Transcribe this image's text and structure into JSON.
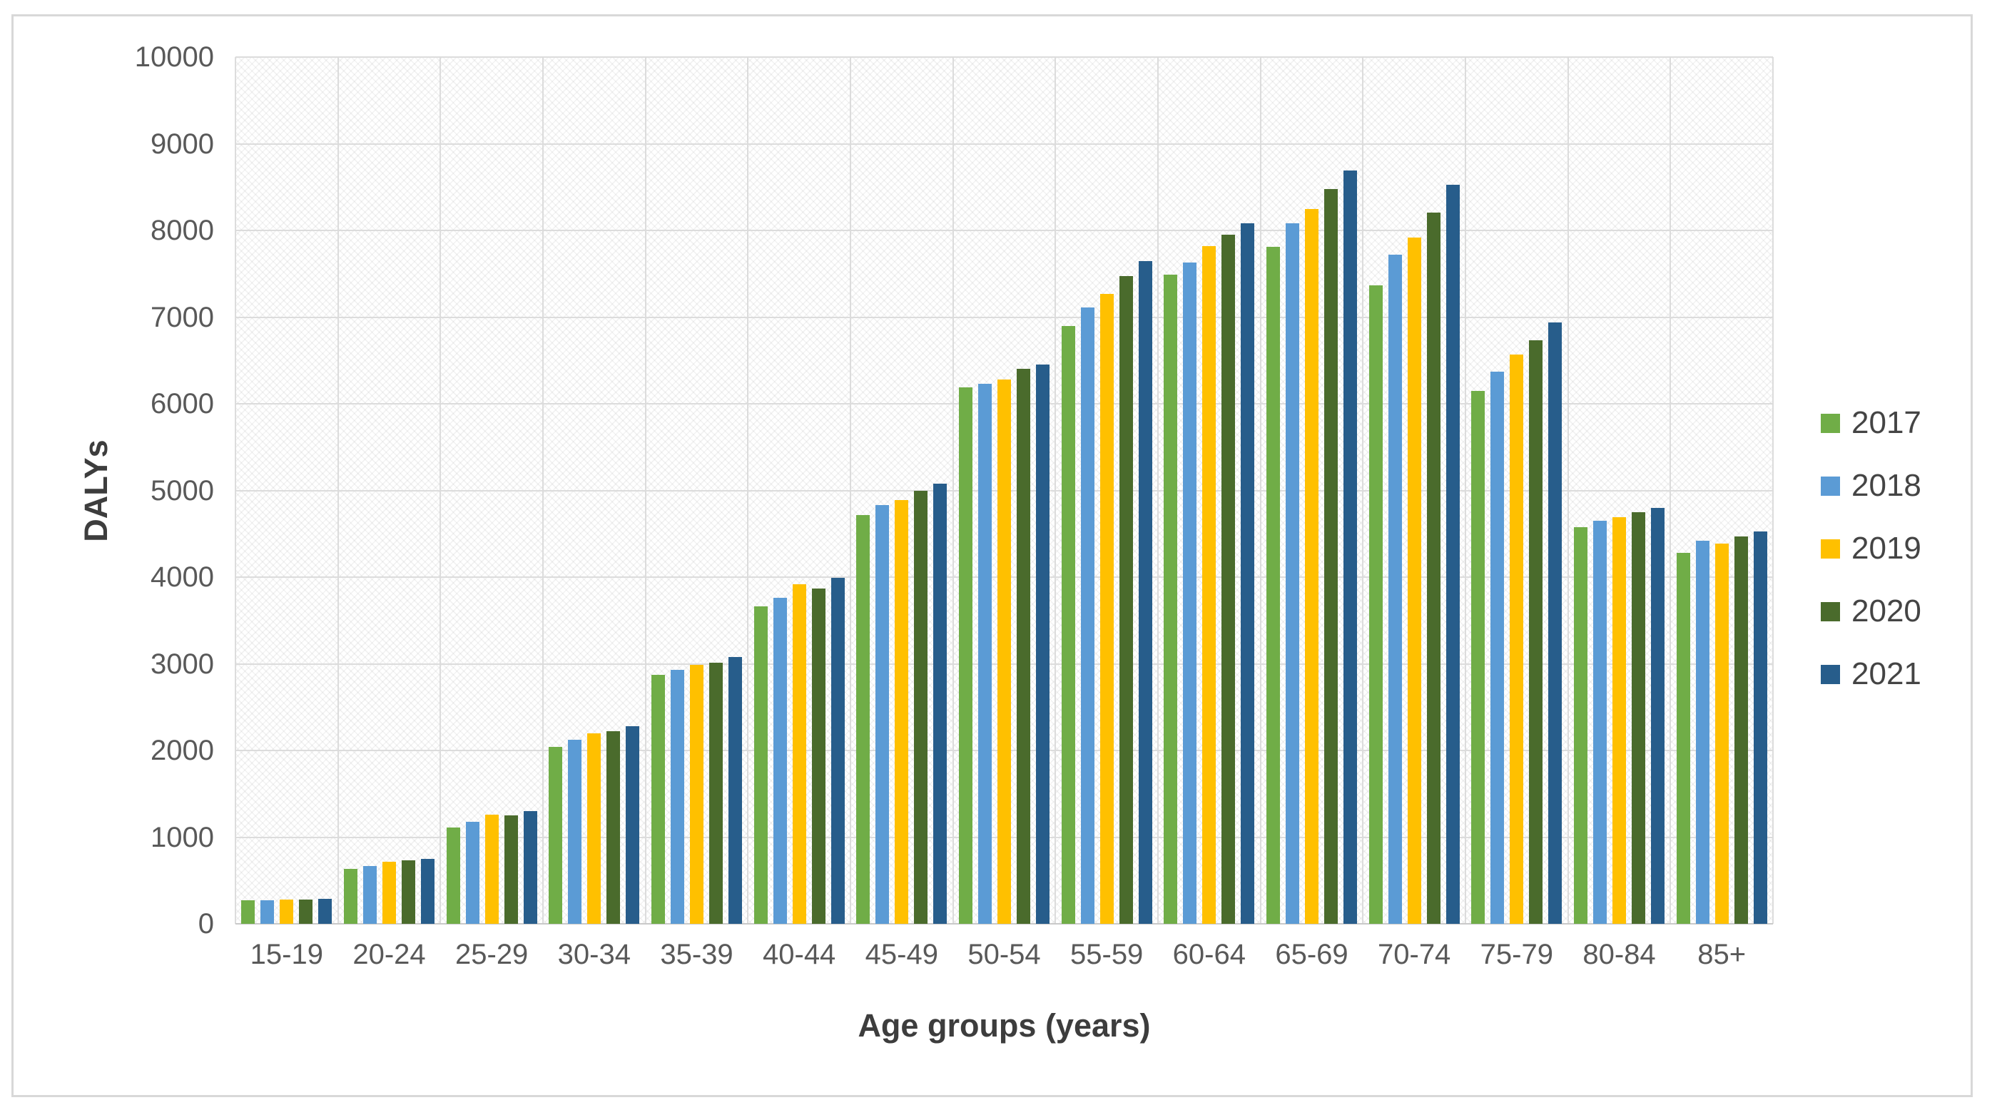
{
  "chart_data": {
    "type": "bar",
    "title": "",
    "xlabel": "Age groups (years)",
    "ylabel": "DALYs",
    "ylim": [
      0,
      10000
    ],
    "ytick_step": 1000,
    "yticks": [
      0,
      1000,
      2000,
      3000,
      4000,
      5000,
      6000,
      7000,
      8000,
      9000,
      10000
    ],
    "grid": true,
    "plot_background": "light-diagonal-crosshatch",
    "gridline_color": "#dcdcdc",
    "legend_position": "right",
    "categories": [
      "15-19",
      "20-24",
      "25-29",
      "30-34",
      "35-39",
      "40-44",
      "45-49",
      "50-54",
      "55-59",
      "60-64",
      "65-69",
      "70-74",
      "75-79",
      "80-84",
      "85+"
    ],
    "series": [
      {
        "name": "2017",
        "color": "#70AD47",
        "values": [
          270,
          630,
          1110,
          2040,
          2870,
          3660,
          4720,
          6190,
          6900,
          7490,
          7810,
          7370,
          6150,
          4580,
          4280
        ]
      },
      {
        "name": "2018",
        "color": "#5B9BD5",
        "values": [
          275,
          670,
          1180,
          2120,
          2930,
          3760,
          4830,
          6230,
          7110,
          7630,
          8080,
          7720,
          6370,
          4650,
          4420
        ]
      },
      {
        "name": "2019",
        "color": "#FFC000",
        "values": [
          280,
          720,
          1260,
          2200,
          2990,
          3920,
          4890,
          6280,
          7270,
          7820,
          8250,
          7920,
          6570,
          4690,
          4390
        ]
      },
      {
        "name": "2020",
        "color": "#4A6B2C",
        "values": [
          280,
          730,
          1250,
          2220,
          3010,
          3870,
          5000,
          6400,
          7470,
          7950,
          8480,
          8210,
          6730,
          4750,
          4470
        ]
      },
      {
        "name": "2021",
        "color": "#275D8B",
        "values": [
          290,
          745,
          1300,
          2280,
          3080,
          3990,
          5080,
          6450,
          7650,
          8080,
          8690,
          8530,
          6940,
          4800,
          4530
        ]
      }
    ]
  }
}
